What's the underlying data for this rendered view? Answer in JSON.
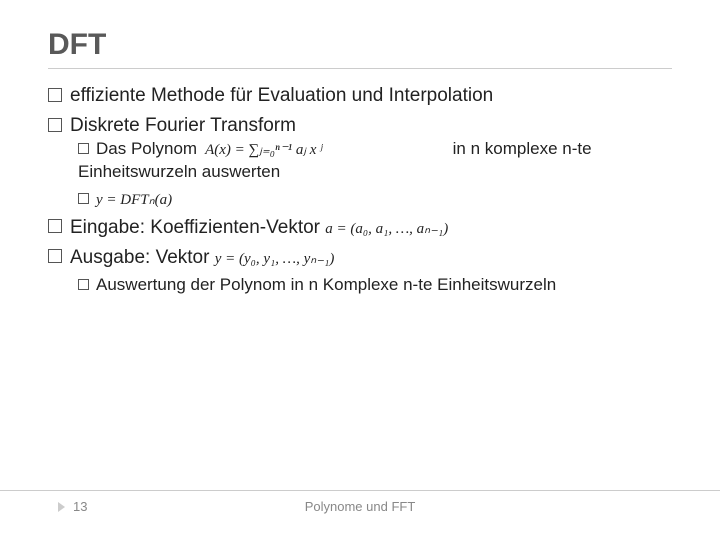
{
  "title": "DFT",
  "bullets": {
    "b1": "effiziente Methode für Evaluation und Interpolation",
    "b2": "Diskrete Fourier Transform",
    "b2_1_a": "Das Polynom",
    "b2_1_b": "in n komplexe n-te",
    "b2_1_c": "Einheitswurzeln auswerten",
    "b3_a": "Eingabe: Koeffizienten-Vektor",
    "b4_a": "Ausgabe:  Vektor",
    "b4_1": "Auswertung der Polynom in n Komplexe n-te Einheitswurzeln"
  },
  "formulas": {
    "poly": "A(x) = ∑ⱼ₌₀ⁿ⁻¹ aⱼ x ʲ",
    "dft": "y = DFTₙ(a)",
    "avec": "a = (a₀, a₁, …, aₙ₋₁)",
    "yvec": "y = (y₀, y₁, …, yₙ₋₁)"
  },
  "footer": {
    "page": "13",
    "text": "Polynome und FFT"
  },
  "colors": {
    "text": "#333333",
    "muted": "#888888",
    "rule": "#cccccc",
    "background": "#ffffff"
  },
  "fontsizes": {
    "title": 30,
    "body": 19,
    "sub": 17,
    "footer": 13
  }
}
